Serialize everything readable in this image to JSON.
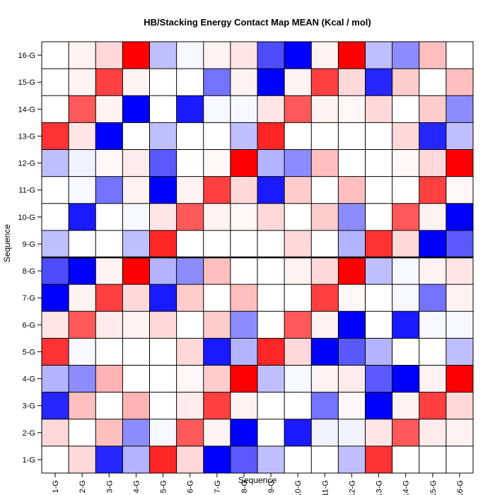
{
  "chart_data": {
    "type": "heatmap",
    "title": "HB/Stacking Energy Contact Map MEAN (Kcal / mol)",
    "xlabel": "Sequence",
    "ylabel": "Sequence",
    "x_categories": [
      "1-G",
      "2-G",
      "3-G",
      "4-G",
      "5-G",
      "6-G",
      "7-G",
      "8-G",
      "9-G",
      "10-G",
      "11-G",
      "12-G",
      "13-G",
      "14-G",
      "15-G",
      "16-G"
    ],
    "y_categories": [
      "1-G",
      "2-G",
      "3-G",
      "4-G",
      "5-G",
      "6-G",
      "7-G",
      "8-G",
      "9-G",
      "10-G",
      "11-G",
      "12-G",
      "13-G",
      "14-G",
      "15-G",
      "16-G"
    ],
    "value_range": [
      -1,
      1
    ],
    "color_scale": {
      "low": "#0000ff",
      "mid": "#ffffff",
      "high": "#ff0000"
    },
    "divider_after_row": "8-G",
    "values": [
      [
        0.0,
        0.15,
        -0.85,
        -0.3,
        0.85,
        0.15,
        -1.0,
        -0.65,
        -0.25,
        0.0,
        0.0,
        -0.25,
        0.8,
        0.0,
        0.0,
        0.0
      ],
      [
        0.15,
        0.0,
        0.25,
        -0.45,
        -0.03,
        0.65,
        0.05,
        -1.0,
        0.0,
        -0.9,
        -0.05,
        -0.05,
        0.1,
        0.65,
        0.08,
        0.05
      ],
      [
        -0.85,
        0.25,
        0.0,
        0.3,
        0.0,
        0.08,
        0.75,
        0.05,
        0.0,
        0.0,
        -0.55,
        0.03,
        -1.0,
        0.05,
        0.75,
        0.15
      ],
      [
        -0.3,
        -0.45,
        0.3,
        0.0,
        0.0,
        0.03,
        0.2,
        1.0,
        -0.25,
        -0.03,
        0.05,
        0.08,
        -0.65,
        -1.0,
        0.05,
        1.0
      ],
      [
        0.8,
        -0.03,
        0.0,
        0.0,
        0.0,
        0.15,
        -0.9,
        -0.3,
        0.85,
        0.15,
        -1.0,
        -0.65,
        -0.3,
        0.0,
        0.0,
        -0.25
      ],
      [
        0.1,
        0.65,
        0.08,
        0.05,
        0.15,
        0.0,
        0.2,
        -0.45,
        0.0,
        0.65,
        0.05,
        -1.0,
        0.0,
        -0.9,
        -0.03,
        -0.03
      ],
      [
        -1.0,
        0.05,
        0.75,
        0.15,
        -0.9,
        0.2,
        0.0,
        0.25,
        0.0,
        0.0,
        0.75,
        0.03,
        0.0,
        -0.03,
        -0.55,
        0.05
      ],
      [
        -0.7,
        -1.0,
        0.05,
        1.0,
        -0.3,
        -0.45,
        0.25,
        0.0,
        0.0,
        0.05,
        0.15,
        1.0,
        -0.25,
        -0.03,
        0.05,
        0.1
      ],
      [
        -0.25,
        0.0,
        0.0,
        -0.25,
        0.85,
        0.0,
        0.0,
        0.0,
        0.0,
        0.15,
        0.0,
        -0.3,
        0.8,
        0.15,
        -1.0,
        -0.65
      ],
      [
        0.0,
        -0.9,
        0.0,
        -0.03,
        0.1,
        0.65,
        0.05,
        0.03,
        0.15,
        0.0,
        0.2,
        -0.45,
        0.0,
        0.65,
        0.05,
        -1.0
      ],
      [
        0.0,
        -0.03,
        -0.55,
        0.05,
        -1.0,
        0.05,
        0.75,
        0.15,
        -0.9,
        0.2,
        0.0,
        0.25,
        0.0,
        0.0,
        0.75,
        0.03
      ],
      [
        -0.25,
        -0.05,
        0.03,
        0.08,
        -0.65,
        0.0,
        0.03,
        1.0,
        -0.3,
        -0.45,
        0.25,
        0.0,
        0.0,
        0.03,
        0.15,
        1.0
      ],
      [
        0.8,
        0.1,
        -1.0,
        0.0,
        -0.25,
        0.0,
        0.0,
        -0.25,
        0.85,
        0.0,
        0.0,
        0.0,
        0.0,
        0.15,
        -0.85,
        -0.25
      ],
      [
        0.0,
        0.65,
        0.05,
        -1.0,
        0.0,
        -0.9,
        -0.03,
        -0.03,
        0.1,
        0.65,
        0.05,
        0.03,
        0.15,
        0.0,
        0.2,
        -0.45
      ],
      [
        0.0,
        0.05,
        0.75,
        0.05,
        0.0,
        0.0,
        -0.55,
        0.05,
        -1.0,
        0.05,
        0.75,
        0.15,
        -0.85,
        0.2,
        0.0,
        0.25
      ],
      [
        0.0,
        0.05,
        0.15,
        1.0,
        -0.25,
        -0.03,
        0.05,
        0.1,
        -0.7,
        -1.0,
        0.05,
        1.0,
        -0.25,
        -0.45,
        0.25,
        0.0
      ]
    ]
  }
}
